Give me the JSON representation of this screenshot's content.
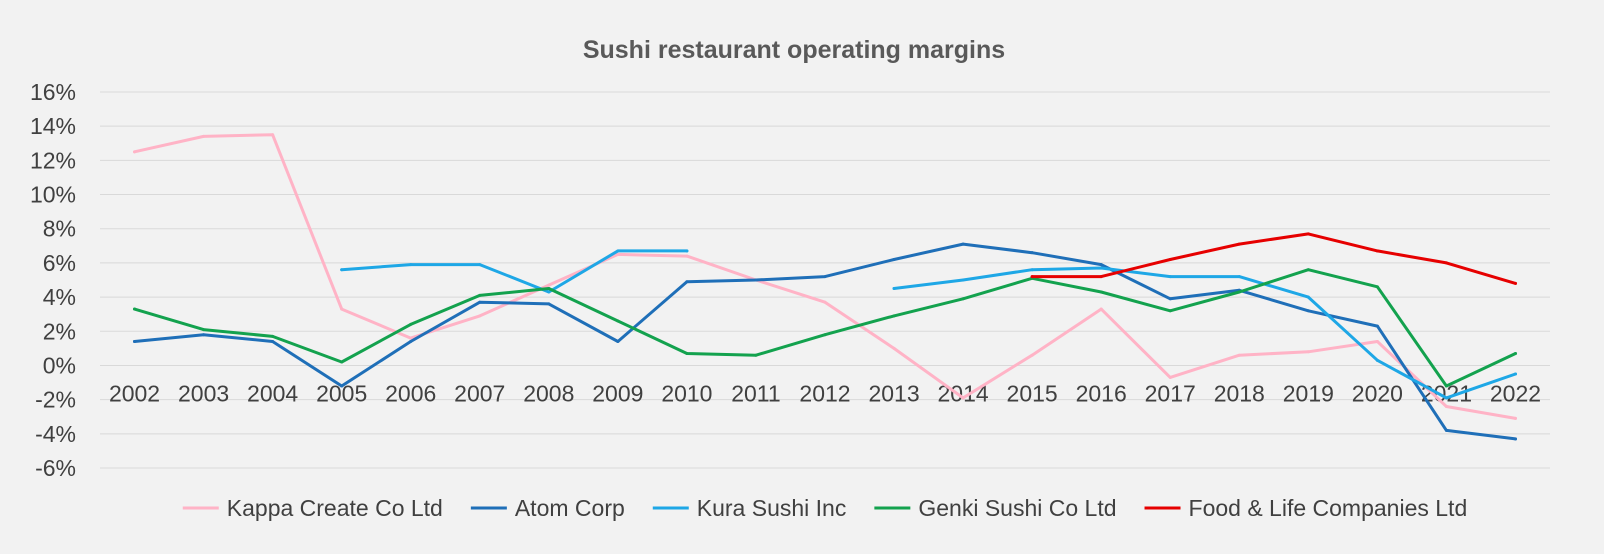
{
  "chart_data": {
    "type": "line",
    "title": "Sushi restaurant operating margins",
    "xlabel": "",
    "ylabel": "",
    "x": [
      "2002",
      "2003",
      "2004",
      "2005",
      "2006",
      "2007",
      "2008",
      "2009",
      "2010",
      "2011",
      "2012",
      "2013",
      "2014",
      "2015",
      "2016",
      "2017",
      "2018",
      "2019",
      "2020",
      "2021",
      "2022"
    ],
    "ylim": [
      -6,
      16
    ],
    "yticks": [
      -6,
      -4,
      -2,
      0,
      2,
      4,
      6,
      8,
      10,
      12,
      14,
      16
    ],
    "ytick_labels": [
      "-6%",
      "-4%",
      "-2%",
      "0%",
      "2%",
      "4%",
      "6%",
      "8%",
      "10%",
      "12%",
      "14%",
      "16%"
    ],
    "grid": true,
    "legend_position": "bottom",
    "series": [
      {
        "name": "Kappa Create Co Ltd",
        "color": "#ffb3c6",
        "values": [
          12.5,
          13.4,
          13.5,
          3.3,
          1.6,
          2.9,
          4.7,
          6.5,
          6.4,
          5.0,
          3.7,
          1.0,
          -1.9,
          0.6,
          3.3,
          -0.7,
          0.6,
          0.8,
          1.4,
          -2.4,
          -3.1
        ]
      },
      {
        "name": "Atom Corp",
        "color": "#1f6fb8",
        "values": [
          1.4,
          1.8,
          1.4,
          -1.2,
          1.4,
          3.7,
          3.6,
          1.4,
          4.9,
          5.0,
          5.2,
          6.2,
          7.1,
          6.6,
          5.9,
          3.9,
          4.4,
          3.2,
          2.3,
          -3.8,
          -4.3
        ]
      },
      {
        "name": "Kura Sushi Inc",
        "color": "#1ea7e6",
        "values": [
          null,
          null,
          null,
          5.6,
          5.9,
          5.9,
          4.3,
          6.7,
          6.7,
          null,
          null,
          4.5,
          5.0,
          5.6,
          5.7,
          5.2,
          5.2,
          4.0,
          0.3,
          -1.9,
          -0.5
        ]
      },
      {
        "name": "Genki Sushi Co Ltd",
        "color": "#13a24e",
        "values": [
          3.3,
          2.1,
          1.7,
          0.2,
          2.4,
          4.1,
          4.5,
          2.6,
          0.7,
          0.6,
          1.8,
          2.9,
          3.9,
          5.1,
          4.3,
          3.2,
          4.3,
          5.6,
          4.6,
          -1.2,
          0.7
        ]
      },
      {
        "name": "Food & Life Companies Ltd",
        "color": "#e60000",
        "values": [
          null,
          null,
          null,
          null,
          null,
          null,
          null,
          null,
          null,
          null,
          null,
          null,
          null,
          5.2,
          5.2,
          6.2,
          7.1,
          7.7,
          6.7,
          6.0,
          4.8
        ]
      }
    ]
  }
}
